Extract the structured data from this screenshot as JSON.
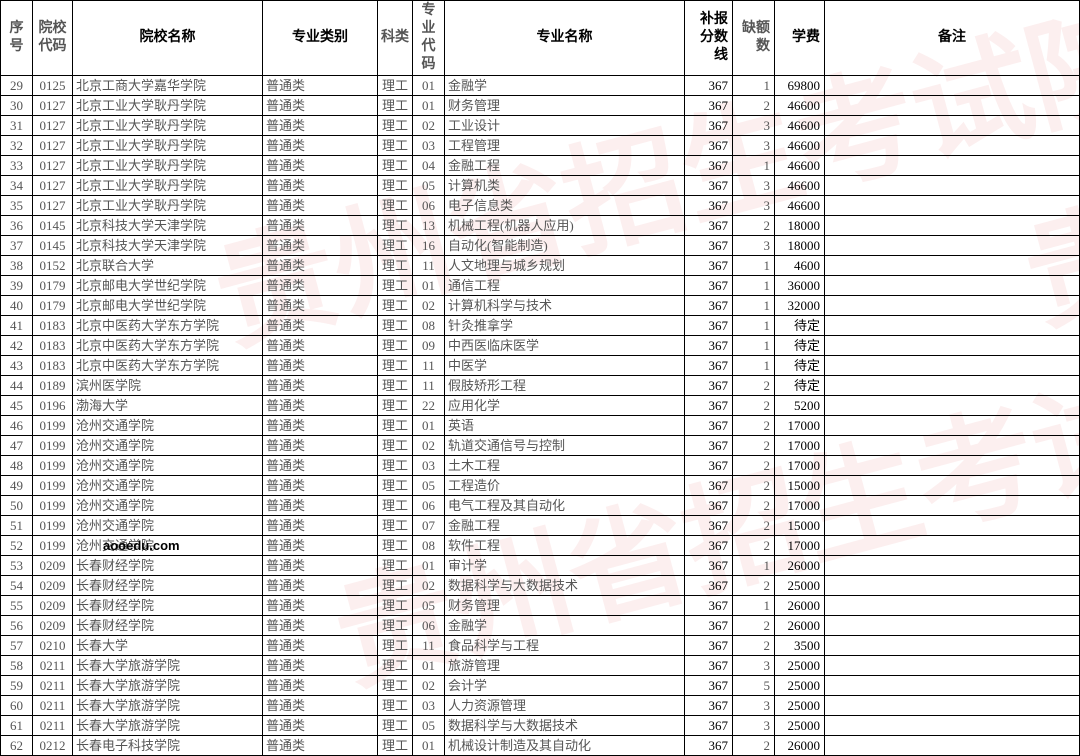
{
  "watermark_text": "贵州省招生考试院",
  "domain_note": "aooedu.com",
  "columns": [
    {
      "key": "seq",
      "label": "序号",
      "cls": "col-seq"
    },
    {
      "key": "scode",
      "label": "院校\n代码",
      "cls": "col-scode"
    },
    {
      "key": "sname",
      "label": "院校名称",
      "cls": "col-sname"
    },
    {
      "key": "ptype",
      "label": "专业类别",
      "cls": "col-ptype"
    },
    {
      "key": "kind",
      "label": "科类",
      "cls": "col-kind"
    },
    {
      "key": "mcode",
      "label": "专业\n代码",
      "cls": "col-mcode"
    },
    {
      "key": "mname",
      "label": "专业名称",
      "cls": "col-mname"
    },
    {
      "key": "score",
      "label": "补报\n分数线",
      "cls": "col-score"
    },
    {
      "key": "qty",
      "label": "缺额数",
      "cls": "col-qty"
    },
    {
      "key": "fee",
      "label": "学费",
      "cls": "col-fee"
    },
    {
      "key": "note",
      "label": "备注",
      "cls": "col-note"
    }
  ],
  "rows": [
    {
      "seq": 29,
      "scode": "0125",
      "sname": "北京工商大学嘉华学院",
      "ptype": "普通类",
      "kind": "理工",
      "mcode": "01",
      "mname": "金融学",
      "score": 367,
      "qty": 1,
      "fee": "69800",
      "note": ""
    },
    {
      "seq": 30,
      "scode": "0127",
      "sname": "北京工业大学耿丹学院",
      "ptype": "普通类",
      "kind": "理工",
      "mcode": "01",
      "mname": "财务管理",
      "score": 367,
      "qty": 2,
      "fee": "46600",
      "note": ""
    },
    {
      "seq": 31,
      "scode": "0127",
      "sname": "北京工业大学耿丹学院",
      "ptype": "普通类",
      "kind": "理工",
      "mcode": "02",
      "mname": "工业设计",
      "score": 367,
      "qty": 3,
      "fee": "46600",
      "note": ""
    },
    {
      "seq": 32,
      "scode": "0127",
      "sname": "北京工业大学耿丹学院",
      "ptype": "普通类",
      "kind": "理工",
      "mcode": "03",
      "mname": "工程管理",
      "score": 367,
      "qty": 3,
      "fee": "46600",
      "note": ""
    },
    {
      "seq": 33,
      "scode": "0127",
      "sname": "北京工业大学耿丹学院",
      "ptype": "普通类",
      "kind": "理工",
      "mcode": "04",
      "mname": "金融工程",
      "score": 367,
      "qty": 1,
      "fee": "46600",
      "note": ""
    },
    {
      "seq": 34,
      "scode": "0127",
      "sname": "北京工业大学耿丹学院",
      "ptype": "普通类",
      "kind": "理工",
      "mcode": "05",
      "mname": "计算机类",
      "score": 367,
      "qty": 3,
      "fee": "46600",
      "note": ""
    },
    {
      "seq": 35,
      "scode": "0127",
      "sname": "北京工业大学耿丹学院",
      "ptype": "普通类",
      "kind": "理工",
      "mcode": "06",
      "mname": "电子信息类",
      "score": 367,
      "qty": 3,
      "fee": "46600",
      "note": ""
    },
    {
      "seq": 36,
      "scode": "0145",
      "sname": "北京科技大学天津学院",
      "ptype": "普通类",
      "kind": "理工",
      "mcode": "13",
      "mname": "机械工程(机器人应用)",
      "score": 367,
      "qty": 2,
      "fee": "18000",
      "note": ""
    },
    {
      "seq": 37,
      "scode": "0145",
      "sname": "北京科技大学天津学院",
      "ptype": "普通类",
      "kind": "理工",
      "mcode": "16",
      "mname": "自动化(智能制造)",
      "score": 367,
      "qty": 3,
      "fee": "18000",
      "note": ""
    },
    {
      "seq": 38,
      "scode": "0152",
      "sname": "北京联合大学",
      "ptype": "普通类",
      "kind": "理工",
      "mcode": "11",
      "mname": "人文地理与城乡规划",
      "score": 367,
      "qty": 1,
      "fee": "4600",
      "note": ""
    },
    {
      "seq": 39,
      "scode": "0179",
      "sname": "北京邮电大学世纪学院",
      "ptype": "普通类",
      "kind": "理工",
      "mcode": "01",
      "mname": "通信工程",
      "score": 367,
      "qty": 1,
      "fee": "36000",
      "note": ""
    },
    {
      "seq": 40,
      "scode": "0179",
      "sname": "北京邮电大学世纪学院",
      "ptype": "普通类",
      "kind": "理工",
      "mcode": "02",
      "mname": "计算机科学与技术",
      "score": 367,
      "qty": 1,
      "fee": "32000",
      "note": ""
    },
    {
      "seq": 41,
      "scode": "0183",
      "sname": "北京中医药大学东方学院",
      "ptype": "普通类",
      "kind": "理工",
      "mcode": "08",
      "mname": "针灸推拿学",
      "score": 367,
      "qty": 1,
      "fee": "待定",
      "note": ""
    },
    {
      "seq": 42,
      "scode": "0183",
      "sname": "北京中医药大学东方学院",
      "ptype": "普通类",
      "kind": "理工",
      "mcode": "09",
      "mname": "中西医临床医学",
      "score": 367,
      "qty": 1,
      "fee": "待定",
      "note": ""
    },
    {
      "seq": 43,
      "scode": "0183",
      "sname": "北京中医药大学东方学院",
      "ptype": "普通类",
      "kind": "理工",
      "mcode": "11",
      "mname": "中医学",
      "score": 367,
      "qty": 1,
      "fee": "待定",
      "note": ""
    },
    {
      "seq": 44,
      "scode": "0189",
      "sname": "滨州医学院",
      "ptype": "普通类",
      "kind": "理工",
      "mcode": "11",
      "mname": "假肢矫形工程",
      "score": 367,
      "qty": 2,
      "fee": "待定",
      "note": ""
    },
    {
      "seq": 45,
      "scode": "0196",
      "sname": "渤海大学",
      "ptype": "普通类",
      "kind": "理工",
      "mcode": "22",
      "mname": "应用化学",
      "score": 367,
      "qty": 2,
      "fee": "5200",
      "note": ""
    },
    {
      "seq": 46,
      "scode": "0199",
      "sname": "沧州交通学院",
      "ptype": "普通类",
      "kind": "理工",
      "mcode": "01",
      "mname": "英语",
      "score": 367,
      "qty": 2,
      "fee": "17000",
      "note": ""
    },
    {
      "seq": 47,
      "scode": "0199",
      "sname": "沧州交通学院",
      "ptype": "普通类",
      "kind": "理工",
      "mcode": "02",
      "mname": "轨道交通信号与控制",
      "score": 367,
      "qty": 2,
      "fee": "17000",
      "note": ""
    },
    {
      "seq": 48,
      "scode": "0199",
      "sname": "沧州交通学院",
      "ptype": "普通类",
      "kind": "理工",
      "mcode": "03",
      "mname": "土木工程",
      "score": 367,
      "qty": 2,
      "fee": "17000",
      "note": ""
    },
    {
      "seq": 49,
      "scode": "0199",
      "sname": "沧州交通学院",
      "ptype": "普通类",
      "kind": "理工",
      "mcode": "05",
      "mname": "工程造价",
      "score": 367,
      "qty": 2,
      "fee": "15000",
      "note": ""
    },
    {
      "seq": 50,
      "scode": "0199",
      "sname": "沧州交通学院",
      "ptype": "普通类",
      "kind": "理工",
      "mcode": "06",
      "mname": "电气工程及其自动化",
      "score": 367,
      "qty": 2,
      "fee": "17000",
      "note": ""
    },
    {
      "seq": 51,
      "scode": "0199",
      "sname": "沧州交通学院",
      "ptype": "普通类",
      "kind": "理工",
      "mcode": "07",
      "mname": "金融工程",
      "score": 367,
      "qty": 2,
      "fee": "15000",
      "note": ""
    },
    {
      "seq": 52,
      "scode": "0199",
      "sname": "沧州交通学院",
      "ptype": "普通类",
      "kind": "理工",
      "mcode": "08",
      "mname": "软件工程",
      "score": 367,
      "qty": 2,
      "fee": "17000",
      "note": ""
    },
    {
      "seq": 53,
      "scode": "0209",
      "sname": "长春财经学院",
      "ptype": "普通类",
      "kind": "理工",
      "mcode": "01",
      "mname": "审计学",
      "score": 367,
      "qty": 1,
      "fee": "26000",
      "note": ""
    },
    {
      "seq": 54,
      "scode": "0209",
      "sname": "长春财经学院",
      "ptype": "普通类",
      "kind": "理工",
      "mcode": "02",
      "mname": "数据科学与大数据技术",
      "score": 367,
      "qty": 2,
      "fee": "25000",
      "note": ""
    },
    {
      "seq": 55,
      "scode": "0209",
      "sname": "长春财经学院",
      "ptype": "普通类",
      "kind": "理工",
      "mcode": "05",
      "mname": "财务管理",
      "score": 367,
      "qty": 1,
      "fee": "26000",
      "note": ""
    },
    {
      "seq": 56,
      "scode": "0209",
      "sname": "长春财经学院",
      "ptype": "普通类",
      "kind": "理工",
      "mcode": "06",
      "mname": "金融学",
      "score": 367,
      "qty": 2,
      "fee": "26000",
      "note": ""
    },
    {
      "seq": 57,
      "scode": "0210",
      "sname": "长春大学",
      "ptype": "普通类",
      "kind": "理工",
      "mcode": "11",
      "mname": "食品科学与工程",
      "score": 367,
      "qty": 2,
      "fee": "3500",
      "note": ""
    },
    {
      "seq": 58,
      "scode": "0211",
      "sname": "长春大学旅游学院",
      "ptype": "普通类",
      "kind": "理工",
      "mcode": "01",
      "mname": "旅游管理",
      "score": 367,
      "qty": 3,
      "fee": "25000",
      "note": ""
    },
    {
      "seq": 59,
      "scode": "0211",
      "sname": "长春大学旅游学院",
      "ptype": "普通类",
      "kind": "理工",
      "mcode": "02",
      "mname": "会计学",
      "score": 367,
      "qty": 5,
      "fee": "25000",
      "note": ""
    },
    {
      "seq": 60,
      "scode": "0211",
      "sname": "长春大学旅游学院",
      "ptype": "普通类",
      "kind": "理工",
      "mcode": "03",
      "mname": "人力资源管理",
      "score": 367,
      "qty": 3,
      "fee": "25000",
      "note": ""
    },
    {
      "seq": 61,
      "scode": "0211",
      "sname": "长春大学旅游学院",
      "ptype": "普通类",
      "kind": "理工",
      "mcode": "05",
      "mname": "数据科学与大数据技术",
      "score": 367,
      "qty": 3,
      "fee": "25000",
      "note": ""
    },
    {
      "seq": 62,
      "scode": "0212",
      "sname": "长春电子科技学院",
      "ptype": "普通类",
      "kind": "理工",
      "mcode": "01",
      "mname": "机械设计制造及其自动化",
      "score": 367,
      "qty": 2,
      "fee": "26000",
      "note": ""
    }
  ]
}
